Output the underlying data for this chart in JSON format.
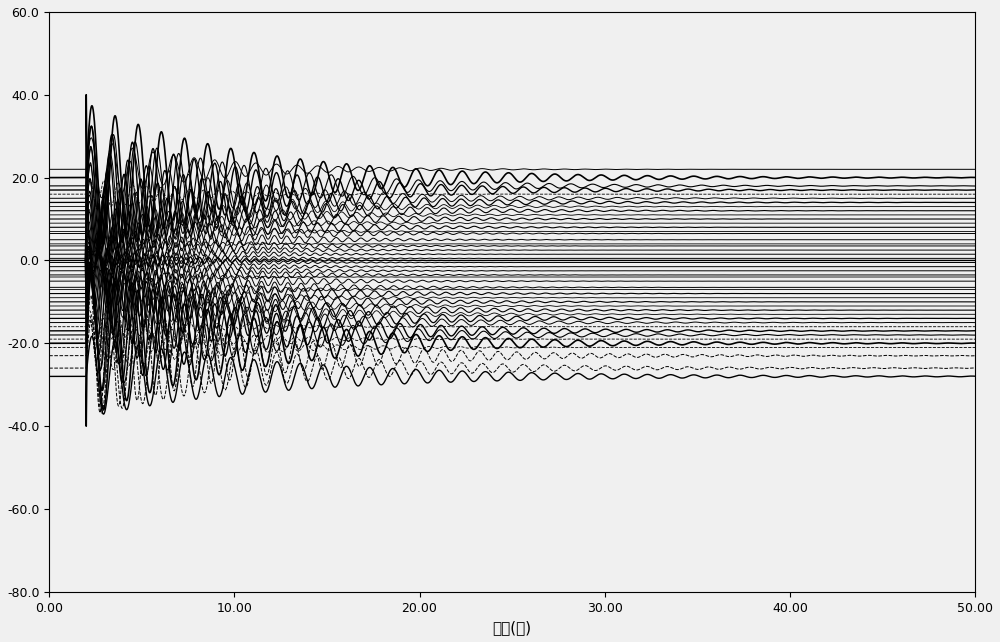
{
  "xlabel": "时间(秒)",
  "xlim": [
    0.0,
    50.0
  ],
  "ylim": [
    -80.0,
    60.0
  ],
  "xticks": [
    0.0,
    10.0,
    20.0,
    30.0,
    40.0,
    50.0
  ],
  "yticks": [
    -80.0,
    -60.0,
    -40.0,
    -20.0,
    0.0,
    20.0,
    40.0,
    60.0
  ],
  "background_color": "#f0f0f0",
  "line_color": "#000000",
  "figsize": [
    10.0,
    6.42
  ],
  "dpi": 100,
  "t_start": 0.0,
  "t_end": 50.0,
  "t_disturbance": 2.0,
  "lines": [
    {
      "sv": 20.0,
      "amp": 18.0,
      "freq": 0.8,
      "decay": 0.12,
      "ls": "-",
      "lw": 1.2
    },
    {
      "sv": 17.0,
      "amp": 16.0,
      "freq": 0.9,
      "decay": 0.13,
      "ls": "-",
      "lw": 1.0
    },
    {
      "sv": 14.0,
      "amp": 14.0,
      "freq": 1.0,
      "decay": 0.14,
      "ls": "-",
      "lw": 0.9
    },
    {
      "sv": 12.0,
      "amp": 12.0,
      "freq": 1.1,
      "decay": 0.15,
      "ls": "-",
      "lw": 0.8
    },
    {
      "sv": 10.0,
      "amp": 10.0,
      "freq": 1.2,
      "decay": 0.16,
      "ls": "-",
      "lw": 0.8
    },
    {
      "sv": 8.0,
      "amp": 9.0,
      "freq": 1.3,
      "decay": 0.17,
      "ls": "-",
      "lw": 0.8
    },
    {
      "sv": 6.5,
      "amp": 8.0,
      "freq": 1.4,
      "decay": 0.18,
      "ls": "-",
      "lw": 0.7
    },
    {
      "sv": 5.0,
      "amp": 7.0,
      "freq": 1.5,
      "decay": 0.19,
      "ls": "-",
      "lw": 0.7
    },
    {
      "sv": 3.5,
      "amp": 6.0,
      "freq": 1.6,
      "decay": 0.2,
      "ls": "-",
      "lw": 0.7
    },
    {
      "sv": 2.5,
      "amp": 5.0,
      "freq": 1.7,
      "decay": 0.21,
      "ls": "-",
      "lw": 0.7
    },
    {
      "sv": 1.5,
      "amp": 4.5,
      "freq": 1.8,
      "decay": 0.22,
      "ls": "-",
      "lw": 0.7
    },
    {
      "sv": 0.5,
      "amp": 4.0,
      "freq": 1.9,
      "decay": 0.23,
      "ls": "-",
      "lw": 0.7
    },
    {
      "sv": 0.0,
      "amp": 3.5,
      "freq": 2.0,
      "decay": 0.25,
      "ls": "-",
      "lw": 1.0
    },
    {
      "sv": -0.5,
      "amp": 4.0,
      "freq": 1.9,
      "decay": 0.23,
      "ls": "-",
      "lw": 0.7
    },
    {
      "sv": -1.5,
      "amp": 4.5,
      "freq": 1.8,
      "decay": 0.22,
      "ls": "-",
      "lw": 0.7
    },
    {
      "sv": -2.5,
      "amp": 5.0,
      "freq": 1.7,
      "decay": 0.21,
      "ls": "-",
      "lw": 0.7
    },
    {
      "sv": -3.5,
      "amp": 6.0,
      "freq": 1.6,
      "decay": 0.2,
      "ls": "-",
      "lw": 0.7
    },
    {
      "sv": -5.0,
      "amp": 7.0,
      "freq": 1.5,
      "decay": 0.19,
      "ls": "-",
      "lw": 0.7
    },
    {
      "sv": -6.5,
      "amp": 8.0,
      "freq": 1.4,
      "decay": 0.18,
      "ls": "-",
      "lw": 0.7
    },
    {
      "sv": -8.0,
      "amp": 9.0,
      "freq": 1.3,
      "decay": 0.17,
      "ls": "-",
      "lw": 0.8
    },
    {
      "sv": -10.0,
      "amp": 10.0,
      "freq": 1.2,
      "decay": 0.16,
      "ls": "-",
      "lw": 0.8
    },
    {
      "sv": -12.0,
      "amp": 12.0,
      "freq": 1.1,
      "decay": 0.15,
      "ls": "-",
      "lw": 0.8
    },
    {
      "sv": -14.0,
      "amp": 14.0,
      "freq": 1.0,
      "decay": 0.14,
      "ls": "-",
      "lw": 0.9
    },
    {
      "sv": -17.0,
      "amp": 16.0,
      "freq": 0.9,
      "decay": 0.13,
      "ls": "-",
      "lw": 1.0
    },
    {
      "sv": -20.0,
      "amp": 18.0,
      "freq": 0.8,
      "decay": 0.12,
      "ls": "-",
      "lw": 1.2
    },
    {
      "sv": -23.0,
      "amp": 15.0,
      "freq": 1.0,
      "decay": 0.12,
      "ls": "--",
      "lw": 0.7
    },
    {
      "sv": -26.0,
      "amp": 12.0,
      "freq": 0.9,
      "decay": 0.11,
      "ls": "--",
      "lw": 0.7
    },
    {
      "sv": 22.0,
      "amp": 8.0,
      "freq": 0.9,
      "decay": 0.18,
      "ls": "-",
      "lw": 0.7
    },
    {
      "sv": -28.0,
      "amp": 10.0,
      "freq": 0.8,
      "decay": 0.1,
      "ls": "-",
      "lw": 1.0
    },
    {
      "sv": 4.0,
      "amp": 3.0,
      "freq": 2.2,
      "decay": 0.28,
      "ls": "-",
      "lw": 0.6
    },
    {
      "sv": -4.0,
      "amp": 3.0,
      "freq": 2.2,
      "decay": 0.28,
      "ls": "-",
      "lw": 0.6
    },
    {
      "sv": 7.0,
      "amp": 5.5,
      "freq": 1.6,
      "decay": 0.22,
      "ls": "-",
      "lw": 0.6
    },
    {
      "sv": -7.0,
      "amp": 5.5,
      "freq": 1.6,
      "decay": 0.22,
      "ls": "-",
      "lw": 0.6
    },
    {
      "sv": 9.0,
      "amp": 7.0,
      "freq": 1.4,
      "decay": 0.2,
      "ls": "-",
      "lw": 0.6
    },
    {
      "sv": -9.0,
      "amp": 7.0,
      "freq": 1.4,
      "decay": 0.2,
      "ls": "-",
      "lw": 0.6
    },
    {
      "sv": 11.0,
      "amp": 8.5,
      "freq": 1.25,
      "decay": 0.18,
      "ls": "-",
      "lw": 0.6
    },
    {
      "sv": -11.0,
      "amp": 8.5,
      "freq": 1.25,
      "decay": 0.18,
      "ls": "-",
      "lw": 0.6
    },
    {
      "sv": 13.0,
      "amp": 10.5,
      "freq": 1.1,
      "decay": 0.16,
      "ls": "-",
      "lw": 0.6
    },
    {
      "sv": -13.0,
      "amp": 10.5,
      "freq": 1.1,
      "decay": 0.16,
      "ls": "-",
      "lw": 0.6
    },
    {
      "sv": 15.0,
      "amp": 12.5,
      "freq": 0.95,
      "decay": 0.14,
      "ls": "-",
      "lw": 0.7
    },
    {
      "sv": -15.0,
      "amp": 12.5,
      "freq": 0.95,
      "decay": 0.14,
      "ls": "-",
      "lw": 0.7
    },
    {
      "sv": 18.0,
      "amp": 15.0,
      "freq": 0.85,
      "decay": 0.13,
      "ls": "-",
      "lw": 0.8
    },
    {
      "sv": -18.0,
      "amp": 15.0,
      "freq": 0.85,
      "decay": 0.13,
      "ls": "-",
      "lw": 0.8
    },
    {
      "sv": -19.0,
      "amp": 6.0,
      "freq": 1.35,
      "decay": 0.2,
      "ls": "--",
      "lw": 0.6
    },
    {
      "sv": -21.0,
      "amp": 7.0,
      "freq": 1.2,
      "decay": 0.18,
      "ls": "--",
      "lw": 0.6
    },
    {
      "sv": 16.0,
      "amp": 4.0,
      "freq": 1.3,
      "decay": 0.22,
      "ls": "--",
      "lw": 0.6
    },
    {
      "sv": -16.0,
      "amp": 4.0,
      "freq": 1.3,
      "decay": 0.22,
      "ls": "--",
      "lw": 0.6
    }
  ],
  "spike_value": 40.0,
  "spike_time": 2.0
}
